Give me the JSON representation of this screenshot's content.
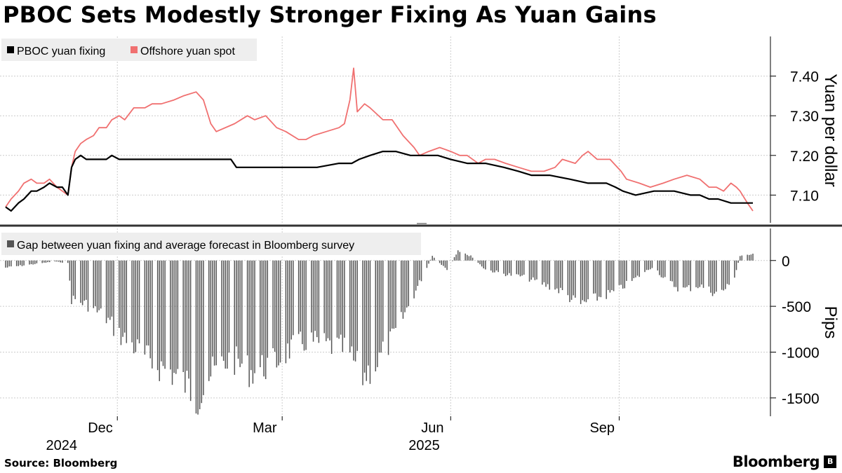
{
  "title": "PBOC Sets Modestly Stronger Fixing As Yuan Gains",
  "footer": {
    "source": "Source: Bloomberg",
    "brand": "Bloomberg"
  },
  "colors": {
    "fixing": "#000000",
    "spot": "#f07070",
    "gap": "#555555",
    "grid": "#cccccc"
  },
  "chart_data": [
    {
      "type": "line",
      "title": "",
      "ylabel": "Yuan per dollar",
      "ylim": [
        7.03,
        7.5
      ],
      "yticks": [
        7.1,
        7.2,
        7.3,
        7.4
      ],
      "ytick_labels": [
        "7.10",
        "7.20",
        "7.30",
        "7.40"
      ],
      "xlim": [
        "2024-10-01",
        "2025-11-13"
      ],
      "grid": true,
      "legend": "top-left",
      "series": [
        {
          "name": "PBOC yuan fixing",
          "points": [
            [
              "2024-10-01",
              7.07
            ],
            [
              "2024-10-04",
              7.06
            ],
            [
              "2024-10-08",
              7.08
            ],
            [
              "2024-10-11",
              7.09
            ],
            [
              "2024-10-15",
              7.11
            ],
            [
              "2024-10-18",
              7.11
            ],
            [
              "2024-10-22",
              7.12
            ],
            [
              "2024-10-25",
              7.13
            ],
            [
              "2024-10-29",
              7.12
            ],
            [
              "2024-11-01",
              7.12
            ],
            [
              "2024-11-04",
              7.1
            ],
            [
              "2024-11-06",
              7.17
            ],
            [
              "2024-11-08",
              7.19
            ],
            [
              "2024-11-11",
              7.2
            ],
            [
              "2024-11-14",
              7.19
            ],
            [
              "2024-11-18",
              7.19
            ],
            [
              "2024-11-21",
              7.19
            ],
            [
              "2024-11-25",
              7.19
            ],
            [
              "2024-11-28",
              7.2
            ],
            [
              "2024-12-02",
              7.19
            ],
            [
              "2024-12-10",
              7.19
            ],
            [
              "2024-12-20",
              7.19
            ],
            [
              "2025-01-01",
              7.19
            ],
            [
              "2025-01-15",
              7.19
            ],
            [
              "2025-02-01",
              7.19
            ],
            [
              "2025-02-04",
              7.17
            ],
            [
              "2025-02-15",
              7.17
            ],
            [
              "2025-02-28",
              7.17
            ],
            [
              "2025-03-10",
              7.17
            ],
            [
              "2025-03-20",
              7.17
            ],
            [
              "2025-04-01",
              7.18
            ],
            [
              "2025-04-08",
              7.18
            ],
            [
              "2025-04-12",
              7.19
            ],
            [
              "2025-04-18",
              7.2
            ],
            [
              "2025-04-25",
              7.21
            ],
            [
              "2025-05-02",
              7.21
            ],
            [
              "2025-05-10",
              7.2
            ],
            [
              "2025-05-20",
              7.2
            ],
            [
              "2025-05-25",
              7.2
            ],
            [
              "2025-06-01",
              7.19
            ],
            [
              "2025-06-10",
              7.18
            ],
            [
              "2025-06-20",
              7.18
            ],
            [
              "2025-06-30",
              7.17
            ],
            [
              "2025-07-08",
              7.16
            ],
            [
              "2025-07-15",
              7.15
            ],
            [
              "2025-07-25",
              7.15
            ],
            [
              "2025-08-05",
              7.14
            ],
            [
              "2025-08-15",
              7.13
            ],
            [
              "2025-08-25",
              7.13
            ],
            [
              "2025-08-30",
              7.12
            ],
            [
              "2025-09-03",
              7.11
            ],
            [
              "2025-09-10",
              7.1
            ],
            [
              "2025-09-20",
              7.11
            ],
            [
              "2025-10-01",
              7.11
            ],
            [
              "2025-10-10",
              7.1
            ],
            [
              "2025-10-15",
              7.1
            ],
            [
              "2025-10-20",
              7.09
            ],
            [
              "2025-10-25",
              7.09
            ],
            [
              "2025-11-01",
              7.08
            ],
            [
              "2025-11-06",
              7.08
            ],
            [
              "2025-11-10",
              7.08
            ],
            [
              "2025-11-13",
              7.08
            ]
          ]
        },
        {
          "name": "Offshore yuan spot",
          "points": [
            [
              "2024-10-01",
              7.07
            ],
            [
              "2024-10-04",
              7.09
            ],
            [
              "2024-10-08",
              7.11
            ],
            [
              "2024-10-11",
              7.13
            ],
            [
              "2024-10-15",
              7.14
            ],
            [
              "2024-10-18",
              7.13
            ],
            [
              "2024-10-22",
              7.13
            ],
            [
              "2024-10-25",
              7.14
            ],
            [
              "2024-10-29",
              7.12
            ],
            [
              "2024-11-01",
              7.11
            ],
            [
              "2024-11-04",
              7.1
            ],
            [
              "2024-11-06",
              7.17
            ],
            [
              "2024-11-08",
              7.21
            ],
            [
              "2024-11-11",
              7.23
            ],
            [
              "2024-11-14",
              7.24
            ],
            [
              "2024-11-18",
              7.25
            ],
            [
              "2024-11-21",
              7.27
            ],
            [
              "2024-11-25",
              7.27
            ],
            [
              "2024-11-28",
              7.29
            ],
            [
              "2024-12-02",
              7.3
            ],
            [
              "2024-12-05",
              7.29
            ],
            [
              "2024-12-10",
              7.32
            ],
            [
              "2024-12-16",
              7.32
            ],
            [
              "2024-12-20",
              7.33
            ],
            [
              "2024-12-25",
              7.33
            ],
            [
              "2025-01-01",
              7.34
            ],
            [
              "2025-01-06",
              7.35
            ],
            [
              "2025-01-13",
              7.36
            ],
            [
              "2025-01-17",
              7.34
            ],
            [
              "2025-01-21",
              7.28
            ],
            [
              "2025-01-24",
              7.26
            ],
            [
              "2025-02-03",
              7.28
            ],
            [
              "2025-02-10",
              7.3
            ],
            [
              "2025-02-14",
              7.29
            ],
            [
              "2025-02-20",
              7.3
            ],
            [
              "2025-02-26",
              7.27
            ],
            [
              "2025-03-03",
              7.26
            ],
            [
              "2025-03-10",
              7.24
            ],
            [
              "2025-03-14",
              7.24
            ],
            [
              "2025-03-18",
              7.25
            ],
            [
              "2025-03-25",
              7.26
            ],
            [
              "2025-04-01",
              7.27
            ],
            [
              "2025-04-04",
              7.28
            ],
            [
              "2025-04-07",
              7.34
            ],
            [
              "2025-04-09",
              7.42
            ],
            [
              "2025-04-11",
              7.31
            ],
            [
              "2025-04-15",
              7.33
            ],
            [
              "2025-04-18",
              7.32
            ],
            [
              "2025-04-25",
              7.29
            ],
            [
              "2025-04-30",
              7.29
            ],
            [
              "2025-05-06",
              7.25
            ],
            [
              "2025-05-12",
              7.22
            ],
            [
              "2025-05-15",
              7.2
            ],
            [
              "2025-05-20",
              7.21
            ],
            [
              "2025-05-26",
              7.22
            ],
            [
              "2025-06-01",
              7.21
            ],
            [
              "2025-06-06",
              7.2
            ],
            [
              "2025-06-10",
              7.2
            ],
            [
              "2025-06-16",
              7.18
            ],
            [
              "2025-06-20",
              7.19
            ],
            [
              "2025-06-25",
              7.19
            ],
            [
              "2025-07-01",
              7.18
            ],
            [
              "2025-07-08",
              7.17
            ],
            [
              "2025-07-15",
              7.16
            ],
            [
              "2025-07-22",
              7.16
            ],
            [
              "2025-07-28",
              7.17
            ],
            [
              "2025-08-01",
              7.19
            ],
            [
              "2025-08-08",
              7.18
            ],
            [
              "2025-08-12",
              7.2
            ],
            [
              "2025-08-15",
              7.21
            ],
            [
              "2025-08-20",
              7.19
            ],
            [
              "2025-08-27",
              7.19
            ],
            [
              "2025-09-02",
              7.16
            ],
            [
              "2025-09-05",
              7.14
            ],
            [
              "2025-09-12",
              7.13
            ],
            [
              "2025-09-18",
              7.12
            ],
            [
              "2025-09-25",
              7.13
            ],
            [
              "2025-10-01",
              7.14
            ],
            [
              "2025-10-08",
              7.15
            ],
            [
              "2025-10-15",
              7.14
            ],
            [
              "2025-10-20",
              7.12
            ],
            [
              "2025-10-24",
              7.12
            ],
            [
              "2025-10-28",
              7.11
            ],
            [
              "2025-11-01",
              7.13
            ],
            [
              "2025-11-04",
              7.12
            ],
            [
              "2025-11-06",
              7.11
            ],
            [
              "2025-11-10",
              7.08
            ],
            [
              "2025-11-13",
              7.06
            ]
          ]
        }
      ]
    },
    {
      "type": "bar",
      "title": "",
      "ylabel": "Pips",
      "ylim": [
        -1700,
        350
      ],
      "yticks": [
        0,
        -500,
        -1000,
        -1500
      ],
      "ytick_labels": [
        "0",
        "-500",
        "-1000",
        "-1500"
      ],
      "xlim": [
        "2024-10-01",
        "2025-11-13"
      ],
      "grid": true,
      "legend": "top-left",
      "series": [
        {
          "name": "Gap between yuan fixing and average forecast in Bloomberg survey",
          "anchors": [
            [
              "2024-10-01",
              -80
            ],
            [
              "2024-10-28",
              -10
            ],
            [
              "2024-11-04",
              -30
            ],
            [
              "2024-11-06",
              -430
            ],
            [
              "2024-11-15",
              -500
            ],
            [
              "2024-11-25",
              -650
            ],
            [
              "2024-12-03",
              -850
            ],
            [
              "2024-12-12",
              -1000
            ],
            [
              "2024-12-20",
              -1150
            ],
            [
              "2024-12-30",
              -1250
            ],
            [
              "2025-01-08",
              -1400
            ],
            [
              "2025-01-13",
              -1550
            ],
            [
              "2025-01-20",
              -1300
            ],
            [
              "2025-02-01",
              -1100
            ],
            [
              "2025-02-12",
              -1250
            ],
            [
              "2025-02-25",
              -1150
            ],
            [
              "2025-03-05",
              -1000
            ],
            [
              "2025-03-15",
              -900
            ],
            [
              "2025-03-25",
              -950
            ],
            [
              "2025-04-05",
              -1000
            ],
            [
              "2025-04-14",
              -1300
            ],
            [
              "2025-04-22",
              -1150
            ],
            [
              "2025-05-01",
              -850
            ],
            [
              "2025-05-08",
              -550
            ],
            [
              "2025-05-15",
              -250
            ],
            [
              "2025-05-22",
              50
            ],
            [
              "2025-05-30",
              -100
            ],
            [
              "2025-06-05",
              100
            ],
            [
              "2025-06-12",
              50
            ],
            [
              "2025-06-20",
              -100
            ],
            [
              "2025-06-30",
              -150
            ],
            [
              "2025-07-10",
              -180
            ],
            [
              "2025-07-20",
              -250
            ],
            [
              "2025-08-01",
              -350
            ],
            [
              "2025-08-10",
              -500
            ],
            [
              "2025-08-20",
              -420
            ],
            [
              "2025-08-30",
              -350
            ],
            [
              "2025-09-10",
              -200
            ],
            [
              "2025-09-20",
              -60
            ],
            [
              "2025-09-25",
              -200
            ],
            [
              "2025-10-05",
              -330
            ],
            [
              "2025-10-15",
              -280
            ],
            [
              "2025-10-25",
              -380
            ],
            [
              "2025-11-02",
              -250
            ],
            [
              "2025-11-06",
              50
            ],
            [
              "2025-11-13",
              80
            ]
          ]
        }
      ]
    }
  ],
  "x_axis": {
    "ticks": [
      {
        "label": "Dec",
        "date": "2024-12-01"
      },
      {
        "label": "Mar",
        "date": "2025-03-01"
      },
      {
        "label": "Jun",
        "date": "2025-06-01"
      },
      {
        "label": "Sep",
        "date": "2025-09-01"
      }
    ],
    "years": [
      {
        "label": "2024",
        "date": "2024-11-15"
      },
      {
        "label": "2025",
        "date": "2025-06-01"
      }
    ]
  }
}
